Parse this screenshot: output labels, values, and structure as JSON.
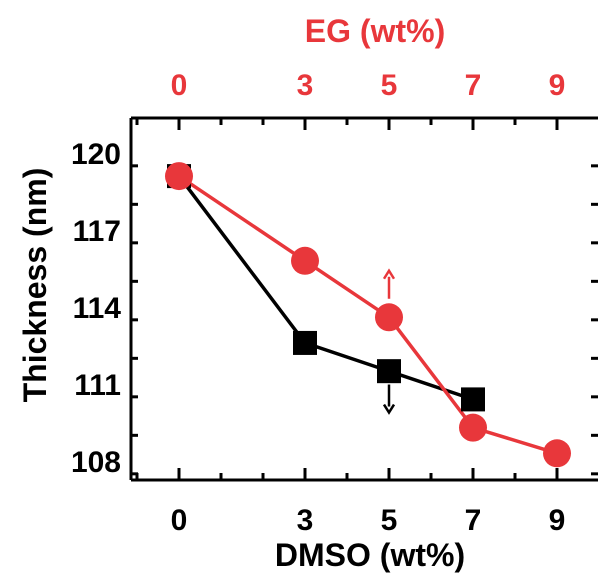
{
  "colors": {
    "axis": "#000000",
    "dmso_series": "#000000",
    "eg_series": "#e8373b",
    "eg_axis_text": "#e8373b",
    "background": "#ffffff"
  },
  "chart_data": {
    "type": "line",
    "title": "",
    "xlabel": "DMSO (wt%)",
    "x2label": "EG (wt%)",
    "ylabel": "Thickness (nm)",
    "xlim": [
      -2,
      10
    ],
    "ylim": [
      106.8,
      121
    ],
    "x_ticks": [
      0,
      3,
      5,
      7,
      9
    ],
    "x2_ticks": [
      0,
      3,
      5,
      7,
      9
    ],
    "y_ticks": [
      108,
      111,
      114,
      117,
      120
    ],
    "legend": "none",
    "grid": false,
    "series": [
      {
        "axis": "bottom",
        "marker": "square",
        "x": [
          0,
          3,
          5,
          7
        ],
        "values": [
          119.1,
          112.6,
          111.5,
          110.4
        ],
        "indicator_arrow": "down",
        "arrow_at": [
          5,
          110.2
        ]
      },
      {
        "axis": "top",
        "marker": "circle",
        "x": [
          0,
          3,
          5,
          7,
          9
        ],
        "values": [
          119.1,
          115.8,
          113.6,
          109.3,
          108.3
        ],
        "indicator_arrow": "up",
        "arrow_at": [
          5,
          115.1
        ]
      }
    ]
  }
}
